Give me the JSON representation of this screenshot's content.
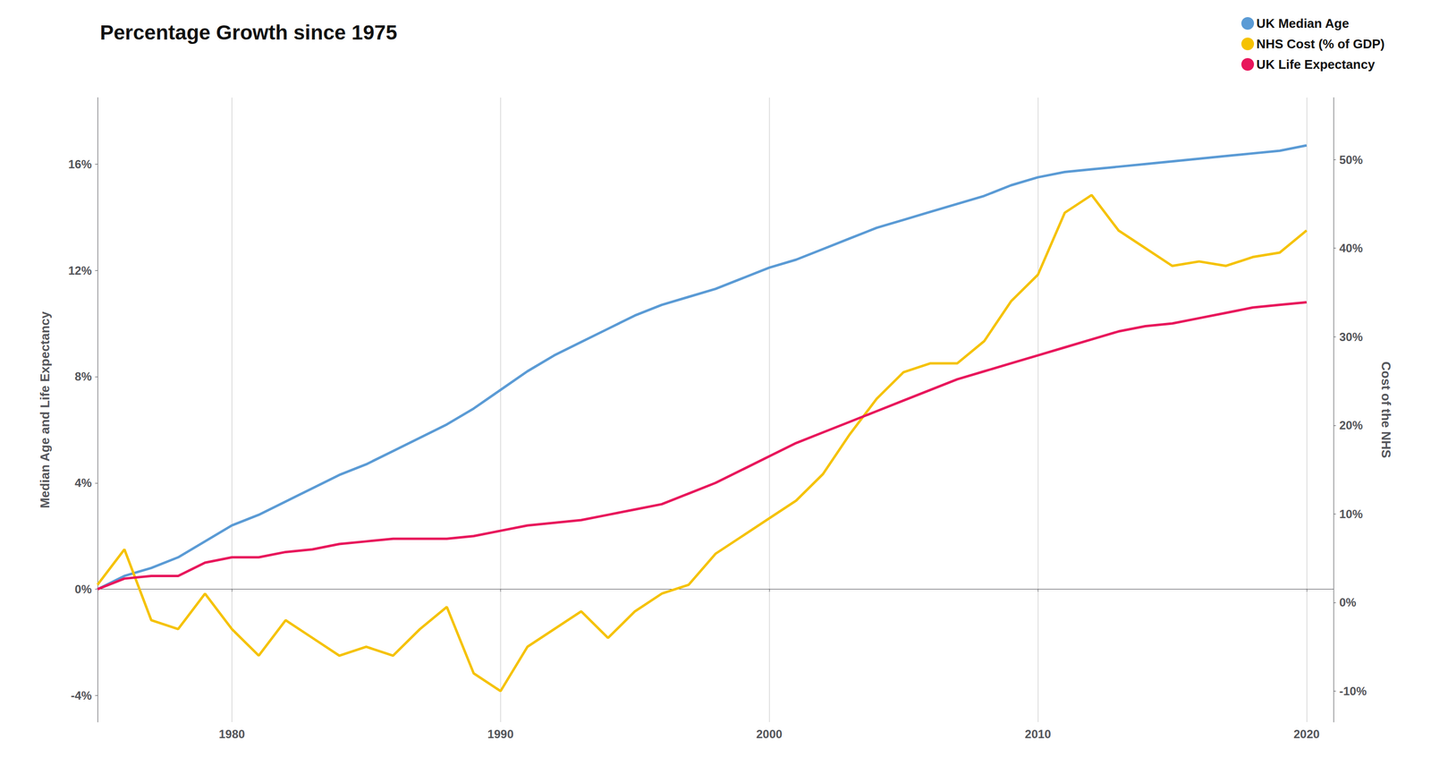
{
  "chart_data": {
    "type": "line",
    "title": "Percentage Growth since 1975",
    "ylabel": "Median Age and Life Expectancy",
    "y2label": "Cost of the NHS",
    "xlim": [
      1975,
      2021
    ],
    "ylim": [
      -0.05,
      0.185
    ],
    "y2lim": [
      -0.135,
      0.57
    ],
    "xticks": [
      1980,
      1990,
      2000,
      2010,
      2020
    ],
    "yticks": [
      {
        "value": -0.04,
        "label": "-4%"
      },
      {
        "value": 0.0,
        "label": "0%"
      },
      {
        "value": 0.04,
        "label": "4%"
      },
      {
        "value": 0.08,
        "label": "8%"
      },
      {
        "value": 0.12,
        "label": "12%"
      },
      {
        "value": 0.16,
        "label": "16%"
      }
    ],
    "y2ticks": [
      {
        "value": -0.1,
        "label": "-10%"
      },
      {
        "value": 0.0,
        "label": "0%"
      },
      {
        "value": 0.1,
        "label": "10%"
      },
      {
        "value": 0.2,
        "label": "20%"
      },
      {
        "value": 0.3,
        "label": "30%"
      },
      {
        "value": 0.4,
        "label": "40%"
      },
      {
        "value": 0.5,
        "label": "50%"
      }
    ],
    "grid": "x",
    "legend": "upper right",
    "x": [
      1975,
      1976,
      1977,
      1978,
      1979,
      1980,
      1981,
      1982,
      1983,
      1984,
      1985,
      1986,
      1987,
      1988,
      1989,
      1990,
      1991,
      1992,
      1993,
      1994,
      1995,
      1996,
      1997,
      1998,
      1999,
      2000,
      2001,
      2002,
      2003,
      2004,
      2005,
      2006,
      2007,
      2008,
      2009,
      2010,
      2011,
      2012,
      2013,
      2014,
      2015,
      2016,
      2017,
      2018,
      2019,
      2020
    ],
    "series": [
      {
        "name": "UK Median Age",
        "color": "#5B9BD5",
        "axis": "y",
        "values": [
          0.0,
          0.005,
          0.008,
          0.012,
          0.018,
          0.024,
          0.028,
          0.033,
          0.038,
          0.043,
          0.047,
          0.052,
          0.057,
          0.062,
          0.068,
          0.075,
          0.082,
          0.088,
          0.093,
          0.098,
          0.103,
          0.107,
          0.11,
          0.113,
          0.117,
          0.121,
          0.124,
          0.128,
          0.132,
          0.136,
          0.139,
          0.142,
          0.145,
          0.148,
          0.152,
          0.155,
          0.157,
          0.158,
          0.159,
          0.16,
          0.161,
          0.162,
          0.163,
          0.164,
          0.165,
          0.167
        ]
      },
      {
        "name": "NHS Cost (% of GDP)",
        "color": "#F5C200",
        "axis": "y2",
        "values": [
          0.02,
          0.06,
          -0.02,
          -0.03,
          0.01,
          -0.03,
          -0.06,
          -0.02,
          -0.04,
          -0.06,
          -0.05,
          -0.06,
          -0.03,
          -0.005,
          -0.08,
          -0.1,
          -0.05,
          -0.03,
          -0.01,
          -0.04,
          -0.01,
          0.01,
          0.02,
          0.055,
          0.075,
          0.095,
          0.115,
          0.145,
          0.19,
          0.23,
          0.26,
          0.27,
          0.27,
          0.295,
          0.34,
          0.37,
          0.44,
          0.46,
          0.42,
          0.4,
          0.38,
          0.385,
          0.38,
          0.39,
          0.395,
          0.42
        ]
      },
      {
        "name": "UK Life Expectancy",
        "color": "#E8175C",
        "axis": "y",
        "values": [
          0.0,
          0.004,
          0.005,
          0.005,
          0.01,
          0.012,
          0.012,
          0.014,
          0.015,
          0.017,
          0.018,
          0.019,
          0.019,
          0.019,
          0.02,
          0.022,
          0.024,
          0.025,
          0.026,
          0.028,
          0.03,
          0.032,
          0.036,
          0.04,
          0.045,
          0.05,
          0.055,
          0.059,
          0.063,
          0.067,
          0.071,
          0.075,
          0.079,
          0.082,
          0.085,
          0.088,
          0.091,
          0.094,
          0.097,
          0.099,
          0.1,
          0.102,
          0.104,
          0.106,
          0.107,
          0.108
        ]
      }
    ]
  }
}
